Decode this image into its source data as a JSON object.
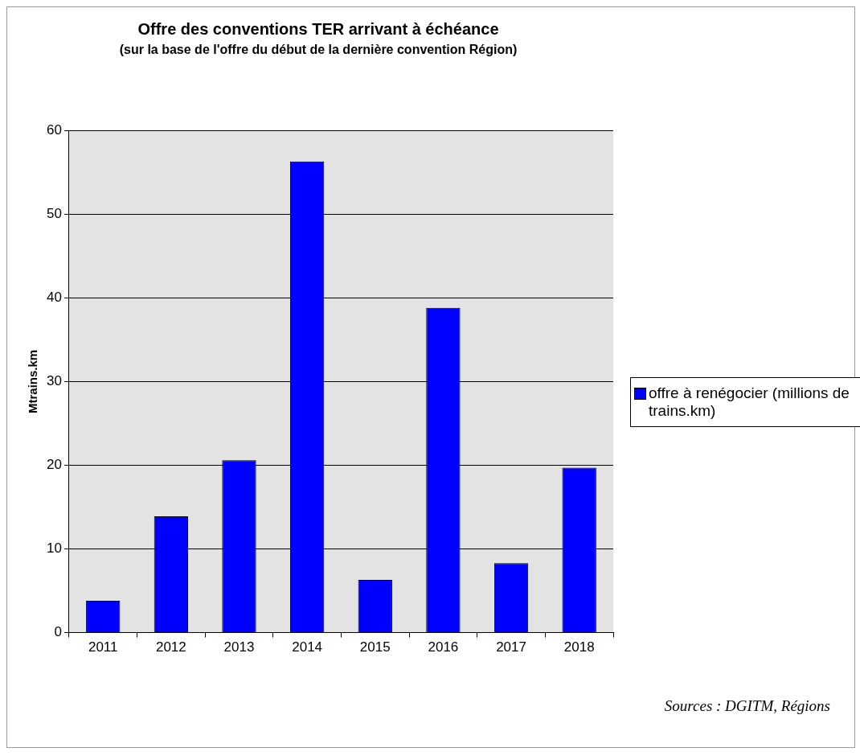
{
  "chart_data": {
    "type": "bar",
    "title": "Offre des conventions TER arrivant à échéance",
    "subtitle": "(sur la base de l'offre du début de la dernière convention Région)",
    "ylabel": "Mtrains.km",
    "categories": [
      "2011",
      "2012",
      "2013",
      "2014",
      "2015",
      "2016",
      "2017",
      "2018"
    ],
    "series": [
      {
        "name": "offre à renégocier (millions de trains.km)",
        "color": "#0000ff",
        "values": [
          3.8,
          13.9,
          20.6,
          56.3,
          6.3,
          38.8,
          8.3,
          19.7
        ]
      }
    ],
    "ylim": [
      0,
      60
    ],
    "yticks": [
      0,
      10,
      20,
      30,
      40,
      50,
      60
    ],
    "grid": "y",
    "legend": "right",
    "annotations": [
      "Sources : DGITM, Régions"
    ]
  }
}
